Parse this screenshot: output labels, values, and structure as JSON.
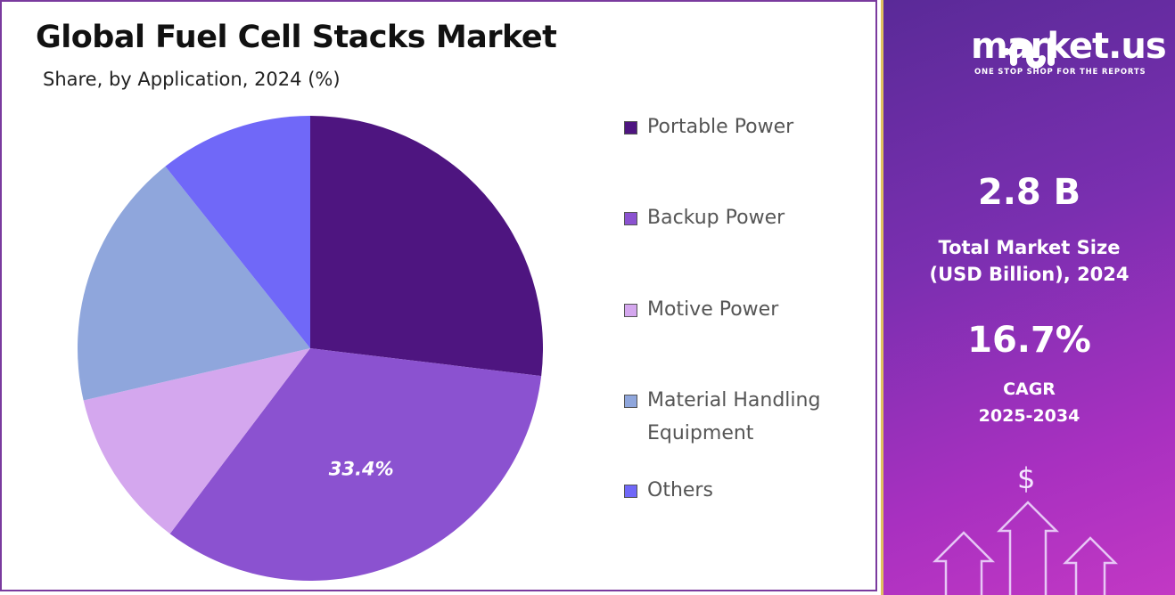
{
  "header": {
    "title": "Global Fuel Cell Stacks Market",
    "subtitle": "Share, by Application, 2024 (%)"
  },
  "chart_data": {
    "type": "pie",
    "start": "top, clockwise",
    "categories": [
      "Portable Power",
      "Backup Power",
      "Motive Power",
      "Material Handling Equipment",
      "Others"
    ],
    "values": [
      26.9,
      33.4,
      11.1,
      17.9,
      10.7
    ],
    "colors": [
      "#4e1580",
      "#8b52d0",
      "#d4a7ee",
      "#8fa6dc",
      "#7068f8"
    ],
    "data_labels": [
      {
        "category": "Backup Power",
        "text": "33.4%"
      }
    ],
    "legend": "right"
  },
  "legend": [
    "Portable Power",
    "Backup Power",
    "Motive Power",
    "Material Handling Equipment",
    "Others"
  ],
  "sidebar": {
    "brand": "market.us",
    "tagline": "ONE STOP SHOP FOR THE REPORTS",
    "market_size": "2.8 B",
    "market_size_label_1": "Total Market Size",
    "market_size_label_2": "(USD Billion), 2024",
    "cagr": "16.7%",
    "cagr_label_1": "CAGR",
    "cagr_label_2": "2025-2034",
    "dollar": "$"
  }
}
